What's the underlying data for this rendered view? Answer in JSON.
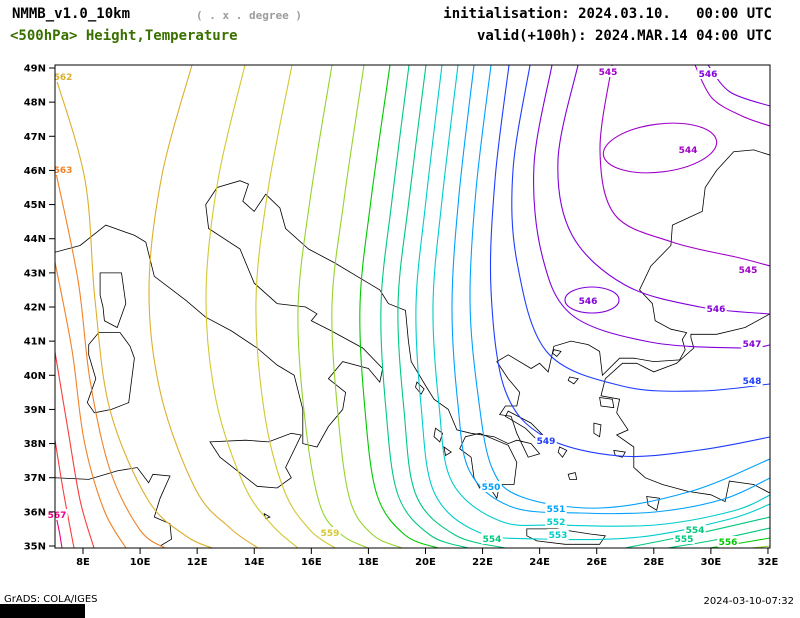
{
  "header": {
    "model": "NMMB_v1.0_10km",
    "resolution_note": "( . x . degree )",
    "field_title": "<500hPa> Height,Temperature",
    "init_label": "initialisation: 2024.03.10.   00:00 UTC",
    "valid_label": "valid(+100h): 2024.MAR.14 04:00 UTC"
  },
  "footer": {
    "left": "GrADS: COLA/IGES",
    "right": "2024-03-10-07:32"
  },
  "colors": {
    "field_title": "#3a7000",
    "subtitle_gray": "#9c9c9c",
    "frame": "#000000"
  },
  "axes": {
    "lat_labels": [
      "49N",
      "48N",
      "47N",
      "46N",
      "45N",
      "44N",
      "43N",
      "42N",
      "41N",
      "40N",
      "39N",
      "38N",
      "37N",
      "36N",
      "35N"
    ],
    "lon_labels": [
      "8E",
      "10E",
      "12E",
      "14E",
      "16E",
      "18E",
      "20E",
      "22E",
      "24E",
      "26E",
      "28E",
      "30E",
      "32E"
    ]
  },
  "chart_data": {
    "type": "contour",
    "field": "500 hPa geopotential height",
    "contour_interval": 1,
    "min_level": 544,
    "max_level": 567,
    "lon_range": [
      "8E",
      "32E"
    ],
    "lat_range": [
      "35N",
      "49N"
    ],
    "low_center_label": 544,
    "high_corner_label": 567,
    "contours": [
      {
        "level": 544,
        "color": "#a000c8",
        "ellipses": [
          [
            660,
            148,
            57,
            24,
            -7
          ]
        ],
        "labels": [
          [
            688,
            150
          ]
        ]
      },
      {
        "level": 545,
        "color": "#a000c8",
        "paths": [
          [
            [
              612,
              65
            ],
            [
              600,
              150
            ],
            [
              615,
              215
            ],
            [
              672,
              242
            ],
            [
              740,
              258
            ],
            [
              770,
              266
            ]
          ],
          [
            [
              695,
              65
            ],
            [
              712,
              98
            ],
            [
              742,
              116
            ],
            [
              770,
              126
            ]
          ]
        ],
        "labels": [
          [
            608,
            72
          ],
          [
            748,
            270
          ]
        ]
      },
      {
        "level": 546,
        "color": "#8200dc",
        "paths": [
          [
            [
              578,
              65
            ],
            [
              558,
              160
            ],
            [
              572,
              235
            ],
            [
              625,
              285
            ],
            [
              700,
              307
            ],
            [
              770,
              314
            ]
          ],
          [
            [
              708,
              65
            ],
            [
              730,
              92
            ],
            [
              770,
              106
            ]
          ]
        ],
        "ellipses": [
          [
            592,
            300,
            27,
            13,
            0
          ]
        ],
        "labels": [
          [
            708,
            74
          ],
          [
            716,
            309
          ],
          [
            588,
            301
          ]
        ]
      },
      {
        "level": 547,
        "color": "#8200dc",
        "paths": [
          [
            [
              552,
              65
            ],
            [
              534,
              165
            ],
            [
              542,
              255
            ],
            [
              572,
              315
            ],
            [
              650,
              342
            ],
            [
              742,
              348
            ],
            [
              770,
              345
            ]
          ]
        ],
        "labels": [
          [
            752,
            344
          ]
        ]
      },
      {
        "level": 548,
        "color": "#1e3cff",
        "paths": [
          [
            [
              530,
              65
            ],
            [
              513,
              170
            ],
            [
              517,
              262
            ],
            [
              547,
              352
            ],
            [
              622,
              386
            ],
            [
              700,
              391
            ],
            [
              770,
              384
            ]
          ]
        ],
        "labels": [
          [
            752,
            381
          ]
        ]
      },
      {
        "level": 549,
        "color": "#1e3cff",
        "paths": [
          [
            [
              509,
              65
            ],
            [
              495,
              180
            ],
            [
              491,
              290
            ],
            [
              505,
              390
            ],
            [
              545,
              437
            ],
            [
              620,
              456
            ],
            [
              700,
              450
            ],
            [
              770,
              437
            ]
          ]
        ],
        "labels": [
          [
            546,
            441
          ]
        ]
      },
      {
        "level": 550,
        "color": "#00a0ff",
        "paths": [
          [
            [
              491,
              65
            ],
            [
              476,
              190
            ],
            [
              470,
              300
            ],
            [
              478,
              395
            ],
            [
              492,
              468
            ],
            [
              522,
              497
            ],
            [
              600,
              508
            ],
            [
              692,
              491
            ],
            [
              770,
              459
            ]
          ]
        ],
        "labels": [
          [
            491,
            487
          ]
        ]
      },
      {
        "level": 551,
        "color": "#00a0ff",
        "paths": [
          [
            [
              474,
              65
            ],
            [
              459,
              195
            ],
            [
              452,
              305
            ],
            [
              458,
              405
            ],
            [
              470,
              472
            ],
            [
              512,
              507
            ],
            [
              580,
              513
            ],
            [
              655,
              512
            ],
            [
              724,
              499
            ],
            [
              770,
              478
            ]
          ]
        ],
        "labels": [
          [
            556,
            509
          ]
        ]
      },
      {
        "level": 552,
        "color": "#00cccc",
        "paths": [
          [
            [
              458,
              65
            ],
            [
              442,
              200
            ],
            [
              433,
              305
            ],
            [
              439,
              405
            ],
            [
              452,
              482
            ],
            [
              500,
              521
            ],
            [
              560,
              525
            ],
            [
              655,
              525
            ],
            [
              733,
              511
            ],
            [
              770,
              495
            ]
          ]
        ],
        "labels": [
          [
            556,
            522
          ]
        ]
      },
      {
        "level": 553,
        "color": "#00cccc",
        "paths": [
          [
            [
              442,
              65
            ],
            [
              426,
              200
            ],
            [
              416,
              305
            ],
            [
              421,
              405
            ],
            [
              434,
              492
            ],
            [
              478,
              532
            ],
            [
              540,
              539
            ],
            [
              640,
              537
            ],
            [
              730,
              519
            ],
            [
              770,
              504
            ]
          ]
        ],
        "labels": [
          [
            558,
            535
          ]
        ]
      },
      {
        "level": 554,
        "color": "#00c87d",
        "paths": [
          [
            [
              426,
              65
            ],
            [
              409,
              200
            ],
            [
              398,
              305
            ],
            [
              404,
              410
            ],
            [
              416,
              495
            ],
            [
              455,
              535
            ],
            [
              505,
              548
            ]
          ],
          [
            [
              770,
              517
            ],
            [
              700,
              533
            ],
            [
              625,
              548
            ]
          ]
        ],
        "labels": [
          [
            492,
            539
          ],
          [
            695,
            530
          ]
        ]
      },
      {
        "level": 555,
        "color": "#00c87d",
        "paths": [
          [
            [
              409,
              65
            ],
            [
              392,
              200
            ],
            [
              381,
              305
            ],
            [
              386,
              410
            ],
            [
              398,
              495
            ],
            [
              430,
              535
            ],
            [
              468,
              548
            ]
          ],
          [
            [
              770,
              528
            ],
            [
              715,
              540
            ],
            [
              668,
              548
            ]
          ]
        ],
        "labels": [
          [
            684,
            539
          ]
        ]
      },
      {
        "level": 556,
        "color": "#00c800",
        "paths": [
          [
            [
              390,
              65
            ],
            [
              371,
              200
            ],
            [
              360,
              305
            ],
            [
              365,
              410
            ],
            [
              377,
              495
            ],
            [
              405,
              535
            ],
            [
              438,
              548
            ]
          ],
          [
            [
              770,
              538
            ],
            [
              735,
              544
            ],
            [
              710,
              548
            ]
          ]
        ],
        "labels": [
          [
            728,
            542
          ]
        ]
      },
      {
        "level": 557,
        "color": "#96d22c",
        "paths": [
          [
            [
              364,
              65
            ],
            [
              344,
              200
            ],
            [
              332,
              305
            ],
            [
              338,
              415
            ],
            [
              350,
              500
            ],
            [
              373,
              535
            ],
            [
              402,
              548
            ]
          ],
          [
            [
              770,
              546
            ],
            [
              752,
              548
            ]
          ]
        ],
        "labels": []
      },
      {
        "level": 558,
        "color": "#96d22c",
        "paths": [
          [
            [
              332,
              65
            ],
            [
              310,
              200
            ],
            [
              298,
              310
            ],
            [
              305,
              420
            ],
            [
              320,
              505
            ],
            [
              342,
              535
            ],
            [
              368,
              548
            ]
          ]
        ],
        "labels": []
      },
      {
        "level": 559,
        "color": "#d2c832",
        "paths": [
          [
            [
              292,
              65
            ],
            [
              268,
              190
            ],
            [
              256,
              300
            ],
            [
              264,
              410
            ],
            [
              284,
              490
            ],
            [
              310,
              530
            ],
            [
              335,
              548
            ]
          ]
        ],
        "labels": [
          [
            330,
            533
          ]
        ]
      },
      {
        "level": 560,
        "color": "#d2c832",
        "paths": [
          [
            [
              245,
              65
            ],
            [
              218,
              180
            ],
            [
              206,
              295
            ],
            [
              216,
              400
            ],
            [
              244,
              485
            ],
            [
              272,
              525
            ],
            [
              298,
              548
            ]
          ]
        ],
        "labels": []
      },
      {
        "level": 561,
        "color": "#dcaf2d",
        "paths": [
          [
            [
              192,
              65
            ],
            [
              162,
              175
            ],
            [
              149,
              290
            ],
            [
              161,
              395
            ],
            [
              196,
              490
            ],
            [
              230,
              528
            ],
            [
              258,
              548
            ]
          ]
        ],
        "labels": []
      },
      {
        "level": 562,
        "color": "#dcaf2d",
        "paths": [
          [
            [
              55,
              75
            ],
            [
              85,
              180
            ],
            [
              95,
              300
            ],
            [
              110,
              410
            ],
            [
              148,
              500
            ],
            [
              186,
              536
            ],
            [
              212,
              548
            ]
          ]
        ],
        "labels": [
          [
            63,
            77
          ]
        ]
      },
      {
        "level": 563,
        "color": "#f08228",
        "paths": [
          [
            [
              55,
              168
            ],
            [
              78,
              280
            ],
            [
              90,
              380
            ],
            [
              110,
              470
            ],
            [
              140,
              530
            ],
            [
              165,
              548
            ]
          ]
        ],
        "labels": [
          [
            63,
            170
          ]
        ]
      },
      {
        "level": 564,
        "color": "#f08228",
        "paths": [
          [
            [
              55,
              262
            ],
            [
              72,
              350
            ],
            [
              84,
              440
            ],
            [
              104,
              510
            ],
            [
              126,
              548
            ]
          ]
        ],
        "labels": []
      },
      {
        "level": 565,
        "color": "#fa3c3c",
        "paths": [
          [
            [
              55,
              352
            ],
            [
              68,
              430
            ],
            [
              80,
              500
            ],
            [
              94,
              548
            ]
          ]
        ],
        "labels": []
      },
      {
        "level": 566,
        "color": "#fa3c3c",
        "paths": [
          [
            [
              55,
              440
            ],
            [
              64,
              495
            ],
            [
              74,
              548
            ]
          ]
        ],
        "labels": []
      },
      {
        "level": 567,
        "color": "#f00082",
        "paths": [
          [
            [
              55,
              512
            ],
            [
              59,
              530
            ],
            [
              62,
              548
            ]
          ]
        ],
        "labels": [
          [
            57,
            515
          ]
        ]
      }
    ]
  }
}
